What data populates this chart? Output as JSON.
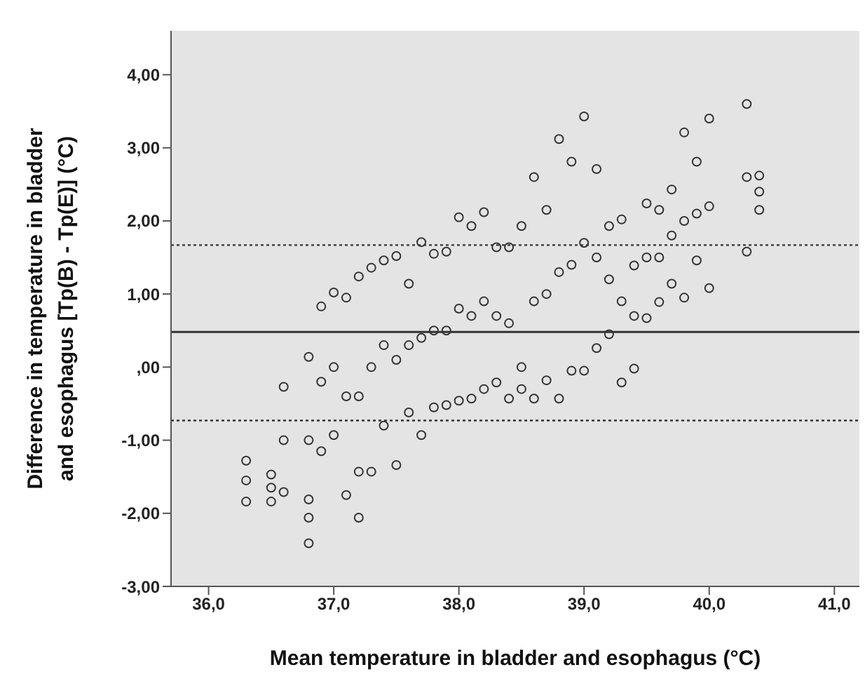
{
  "chart_data": {
    "type": "scatter",
    "xlabel": "Mean temperature in bladder and esophagus (°C)",
    "ylabel": "Difference in temperature in bladder and esophagus  [Tp(B) - Tp(E)] (°C)",
    "marker": "circle",
    "xlim": [
      35.7,
      41.2
    ],
    "ylim": [
      -3,
      4.6
    ],
    "xticks": [
      {
        "value": 36,
        "label": "36,0"
      },
      {
        "value": 37,
        "label": "37,0"
      },
      {
        "value": 38,
        "label": "38,0"
      },
      {
        "value": 39,
        "label": "39,0"
      },
      {
        "value": 40,
        "label": "40,0"
      },
      {
        "value": 41,
        "label": "41,0"
      }
    ],
    "yticks": [
      {
        "value": -3,
        "label": "-3,00"
      },
      {
        "value": -2,
        "label": "-2,00"
      },
      {
        "value": -1,
        "label": "-1,00"
      },
      {
        "value": 0,
        "label": ",00"
      },
      {
        "value": 1,
        "label": "1,00"
      },
      {
        "value": 2,
        "label": "2,00"
      },
      {
        "value": 3,
        "label": "3,00"
      },
      {
        "value": 4,
        "label": "4,00"
      }
    ],
    "ref_lines": [
      {
        "axis": "y",
        "value": 0.48,
        "line_style": "solid",
        "color": "#333333"
      },
      {
        "axis": "y",
        "value": 1.67,
        "line_style": "dotted",
        "color": "#333333"
      },
      {
        "axis": "y",
        "value": -0.73,
        "line_style": "dotted",
        "color": "#333333"
      }
    ],
    "series": [
      {
        "color": "#333333",
        "x": [
          36.3,
          36.3,
          36.3,
          36.5,
          36.5,
          36.5,
          36.6,
          36.6,
          36.6,
          36.8,
          36.8,
          36.8,
          36.8,
          36.8,
          36.9,
          36.9,
          36.9,
          37.0,
          37.0,
          37.0,
          37.1,
          37.1,
          37.1,
          37.2,
          37.2,
          37.2,
          37.2,
          37.3,
          37.3,
          37.3,
          37.4,
          37.4,
          37.4,
          37.5,
          37.5,
          37.5,
          37.6,
          37.6,
          37.6,
          37.7,
          37.7,
          37.7,
          37.8,
          37.8,
          37.8,
          37.9,
          37.9,
          37.9,
          38.0,
          38.0,
          38.0,
          38.1,
          38.1,
          38.1,
          38.2,
          38.2,
          38.2,
          38.3,
          38.3,
          38.3,
          38.4,
          38.4,
          38.4,
          38.5,
          38.5,
          38.5,
          38.6,
          38.6,
          38.6,
          38.7,
          38.7,
          38.7,
          38.8,
          38.8,
          38.8,
          38.9,
          38.9,
          38.9,
          39.0,
          39.0,
          39.0,
          39.1,
          39.1,
          39.1,
          39.2,
          39.2,
          39.2,
          39.3,
          39.3,
          39.3,
          39.4,
          39.4,
          39.4,
          39.5,
          39.5,
          39.5,
          39.6,
          39.6,
          39.6,
          39.7,
          39.7,
          39.7,
          39.8,
          39.8,
          39.8,
          39.9,
          39.9,
          39.9,
          40.0,
          40.0,
          40.0,
          40.3,
          40.3,
          40.3,
          40.4,
          40.4,
          40.4
        ],
        "values": [
          -1.28,
          -1.55,
          -1.84,
          -1.47,
          -1.65,
          -1.84,
          -0.27,
          -1.0,
          -1.71,
          0.14,
          -1.0,
          -1.81,
          -2.06,
          -2.41,
          0.83,
          -0.2,
          -1.15,
          1.02,
          0.0,
          -0.93,
          0.95,
          -0.4,
          -1.75,
          1.24,
          -0.4,
          -1.43,
          -2.06,
          1.36,
          0.0,
          -1.43,
          1.46,
          0.3,
          -0.8,
          1.52,
          0.1,
          -1.34,
          1.14,
          0.3,
          -0.62,
          1.71,
          0.4,
          -0.93,
          1.55,
          0.5,
          -0.55,
          1.58,
          0.5,
          -0.52,
          2.05,
          0.8,
          -0.46,
          1.93,
          0.7,
          -0.43,
          2.12,
          0.9,
          -0.3,
          1.64,
          0.7,
          -0.21,
          1.64,
          0.6,
          -0.43,
          1.93,
          0.0,
          -0.3,
          2.6,
          0.9,
          -0.43,
          2.15,
          1.0,
          -0.18,
          3.12,
          1.3,
          -0.43,
          2.81,
          1.4,
          -0.05,
          3.43,
          1.7,
          -0.05,
          2.71,
          1.5,
          0.26,
          1.93,
          1.2,
          0.45,
          2.02,
          0.9,
          -0.21,
          1.39,
          0.7,
          -0.02,
          2.24,
          1.5,
          0.67,
          2.15,
          1.5,
          0.89,
          2.43,
          1.8,
          1.14,
          3.21,
          2.0,
          0.95,
          2.81,
          2.1,
          1.46,
          3.4,
          2.2,
          1.08,
          3.6,
          2.6,
          1.58,
          2.62,
          2.4,
          2.15
        ]
      }
    ]
  }
}
